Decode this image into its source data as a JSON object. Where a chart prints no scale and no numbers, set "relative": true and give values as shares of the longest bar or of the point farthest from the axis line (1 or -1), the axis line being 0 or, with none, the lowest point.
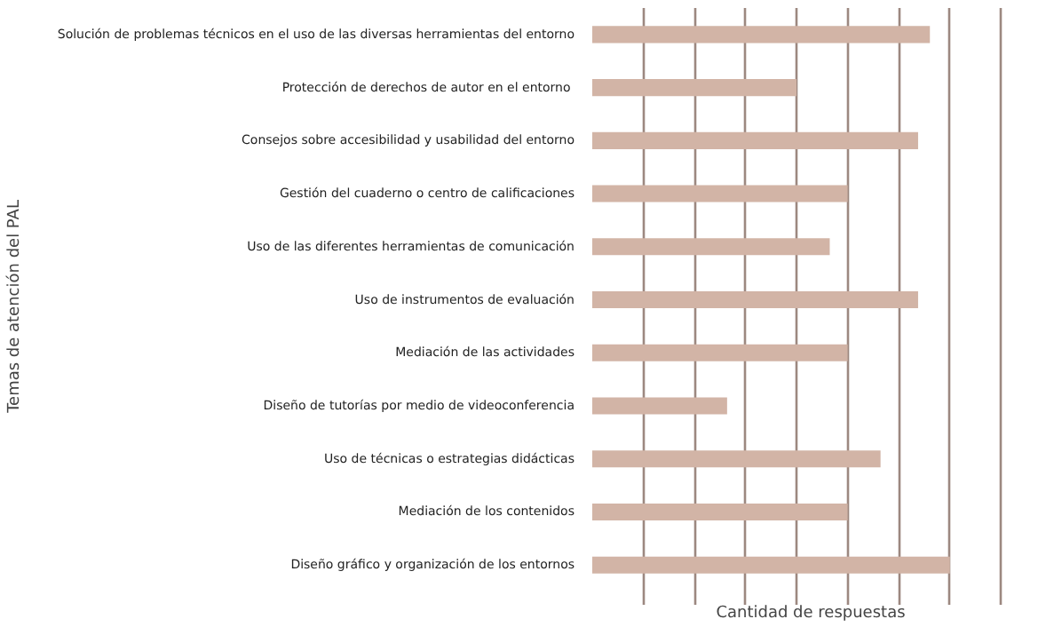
{
  "chart_data": {
    "type": "bar",
    "orientation": "horizontal",
    "relative": true,
    "xlabel": "Cantidad de respuestas",
    "ylabel": "Temas de atención del PAL",
    "categories": [
      "Solución de problemas técnicos en el uso de las diversas herramientas del entorno",
      "Protección  de derechos de autor en el entorno",
      "Consejos sobre accesibilidad y usabilidad del entorno",
      "Gestión del cuaderno o centro de calificaciones",
      "Uso de las diferentes herramientas de comunicación",
      "Uso de instrumentos de evaluación",
      "Mediación de las actividades",
      "Diseño de tutorías por medio de videoconferencia",
      "Uso de técnicas o estrategias didácticas",
      "Mediación de los contenidos",
      "Diseño gráfico y organización de los entornos"
    ],
    "values": [
      0.944,
      0.571,
      0.911,
      0.714,
      0.664,
      0.911,
      0.714,
      0.377,
      0.806,
      0.714,
      1.0
    ],
    "color": "#d2b4a6",
    "grid": "x"
  }
}
